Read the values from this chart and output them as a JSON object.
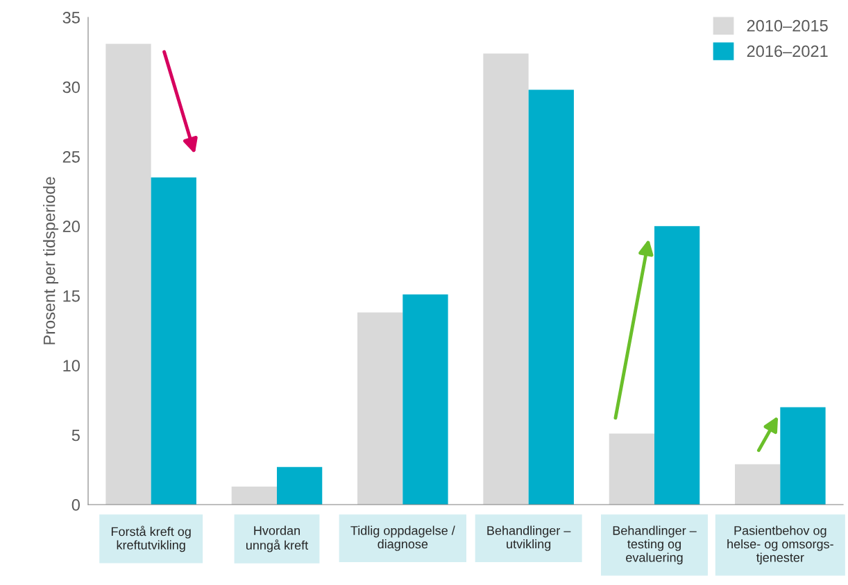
{
  "chart_data": {
    "type": "bar",
    "ylabel": "Prosent per tidsperiode",
    "categories": [
      "Forstå kreft og\nkreftutvikling",
      "Hvordan\nunngå kreft",
      "Tidlig oppdagelse /\ndiagnose",
      "Behandlinger –\nutvikling",
      "Behandlinger –\ntesting og\nevaluering",
      "Pasientbehov og\nhelse- og omsorgs-\ntjenester"
    ],
    "series": [
      {
        "name": "2010–2015",
        "color": "#d9d9d9",
        "values": [
          33.1,
          1.3,
          13.8,
          32.4,
          5.1,
          2.9
        ]
      },
      {
        "name": "2016–2021",
        "color": "#00aecb",
        "values": [
          23.5,
          2.7,
          15.1,
          29.8,
          20.0,
          7.0
        ]
      }
    ],
    "ylim": [
      0,
      35
    ],
    "yticks": [
      0,
      5,
      10,
      15,
      20,
      25,
      30,
      35
    ],
    "grid": false,
    "legend": "top right"
  }
}
